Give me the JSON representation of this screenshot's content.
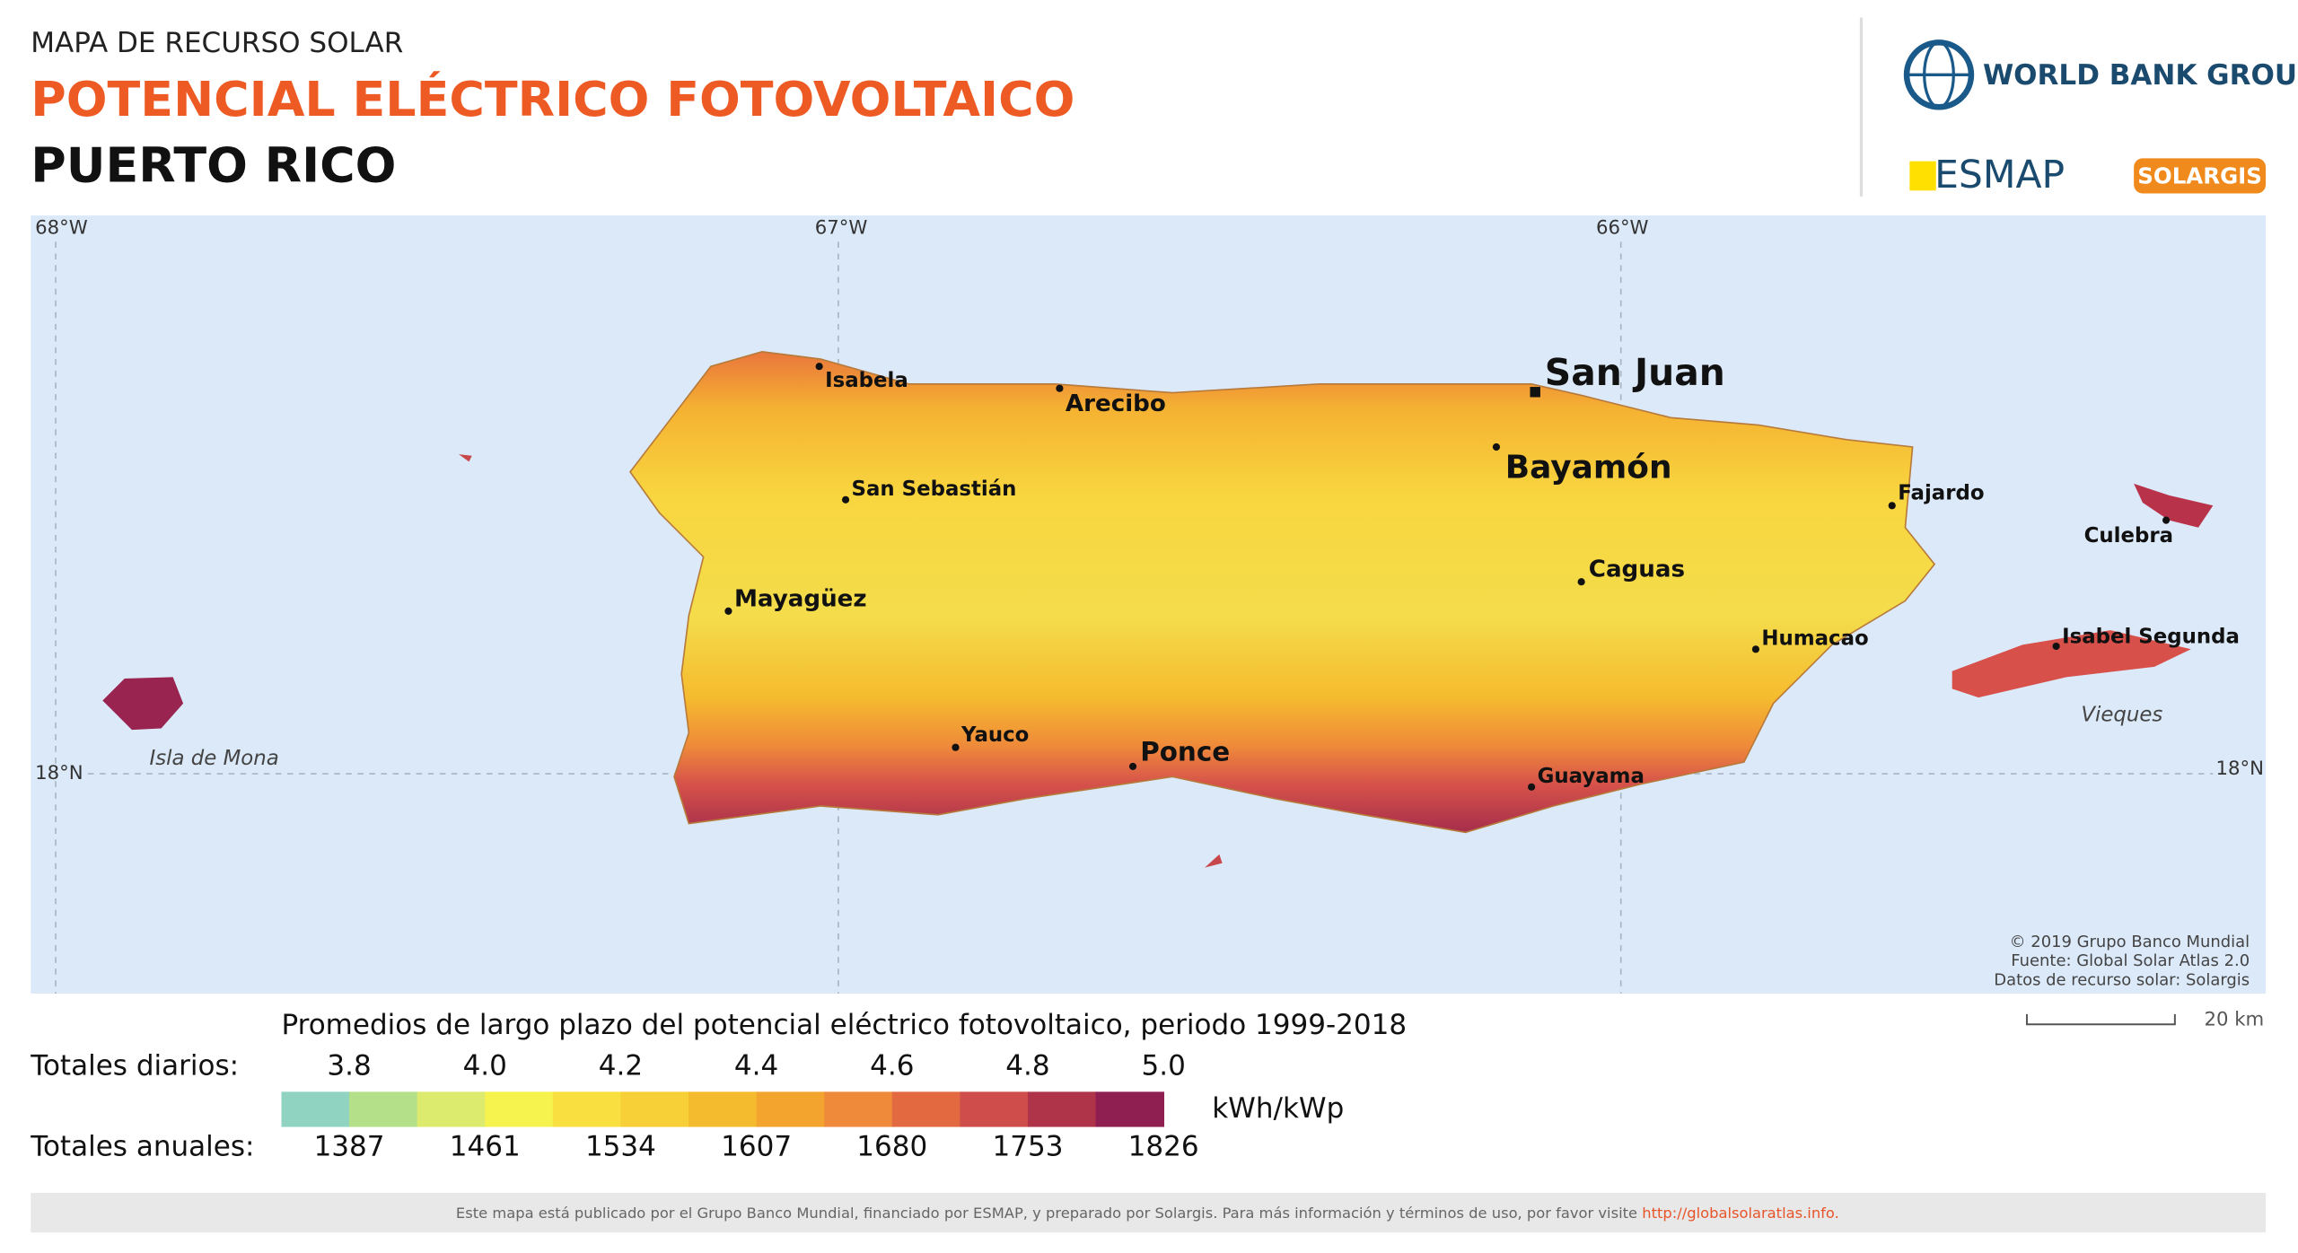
{
  "header": {
    "kicker": "MAPA DE RECURSO SOLAR",
    "title": "POTENCIAL ELÉCTRICO FOTOVOLTAICO",
    "subtitle": "PUERTO RICO"
  },
  "logos": {
    "world_bank": "WORLD BANK GROUP",
    "esmap": "ESMAP",
    "solargis": "SOLARGIS"
  },
  "graticule": {
    "longitudes": [
      "68°W",
      "67°W",
      "66°W"
    ],
    "latitude": "18°N"
  },
  "map": {
    "cities": [
      "Isabela",
      "Arecibo",
      "San Juan",
      "Bayamón",
      "San Sebastián",
      "Fajardo",
      "Culebra",
      "Caguas",
      "Mayagüez",
      "Humacao",
      "Isabel Segunda",
      "Yauco",
      "Ponce",
      "Guayama"
    ],
    "places": [
      "Isla de Mona",
      "Vieques"
    ]
  },
  "credits": [
    "© 2019 Grupo Banco Mundial",
    "Fuente: Global Solar Atlas 2.0",
    "Datos de recurso solar: Solargis"
  ],
  "scale_bar": "20 km",
  "legend": {
    "title": "Promedios de largo plazo del potencial eléctrico fotovoltaico, periodo 1999-2018",
    "daily_label": "Totales diarios:",
    "annual_label": "Totales anuales:",
    "unit": "kWh/kWp",
    "daily": [
      "3.8",
      "4.0",
      "4.2",
      "4.4",
      "4.6",
      "4.8",
      "5.0"
    ],
    "annual": [
      "1387",
      "1461",
      "1534",
      "1607",
      "1680",
      "1753",
      "1826"
    ],
    "colors": [
      "#8fd3c0",
      "#b5e08a",
      "#dcea6e",
      "#f6f24e",
      "#f9e040",
      "#f7cf36",
      "#f5bb2e",
      "#f3a42f",
      "#ef8a3a",
      "#e36a40",
      "#cf4d4a",
      "#b03449",
      "#8f1f50"
    ]
  },
  "footer": {
    "text": "Este mapa está publicado por el Grupo Banco Mundial, financiado por ESMAP, y preparado por Solargis. Para más información y términos de uso, por favor visite",
    "link": "http://globalsolaratlas.info."
  }
}
